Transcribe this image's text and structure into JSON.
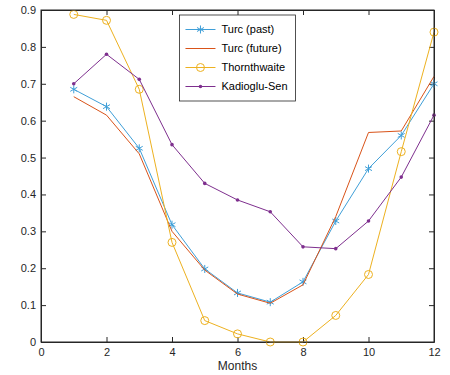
{
  "chart_data": {
    "type": "line",
    "x_label": "Months",
    "x": [
      1,
      2,
      3,
      4,
      5,
      6,
      7,
      8,
      9,
      10,
      11,
      12
    ],
    "xlim": [
      0,
      12
    ],
    "xticks": [
      0,
      2,
      4,
      6,
      8,
      10,
      12
    ],
    "ylim": [
      0,
      0.9
    ],
    "yticks": [
      0,
      0.1,
      0.2,
      0.3,
      0.4,
      0.5,
      0.6,
      0.7,
      0.8,
      0.9
    ],
    "grid": false,
    "legend": "top",
    "series": [
      {
        "name": "Turc (past)",
        "color": "#3f9fd8",
        "marker": "asterisk",
        "line_style": "solid",
        "values": [
          0.685,
          0.638,
          0.525,
          0.318,
          0.198,
          0.133,
          0.108,
          0.163,
          0.328,
          0.47,
          0.56,
          0.7
        ]
      },
      {
        "name": "Turc (future)",
        "color": "#d95319",
        "marker": "none",
        "line_style": "solid",
        "values": [
          0.665,
          0.615,
          0.51,
          0.3,
          0.195,
          0.13,
          0.105,
          0.155,
          0.34,
          0.568,
          0.572,
          0.72
        ]
      },
      {
        "name": "Thornthwaite",
        "color": "#edb120",
        "marker": "circle",
        "line_style": "solid",
        "values": [
          0.888,
          0.872,
          0.685,
          0.27,
          0.058,
          0.022,
          0.0,
          0.0,
          0.072,
          0.183,
          0.516,
          0.84
        ]
      },
      {
        "name": "Kadioglu-Sen",
        "color": "#7e2f8e",
        "marker": "point",
        "line_style": "solid",
        "values": [
          0.7,
          0.78,
          0.712,
          0.535,
          0.43,
          0.385,
          0.353,
          0.258,
          0.253,
          0.328,
          0.447,
          0.615
        ]
      }
    ]
  }
}
